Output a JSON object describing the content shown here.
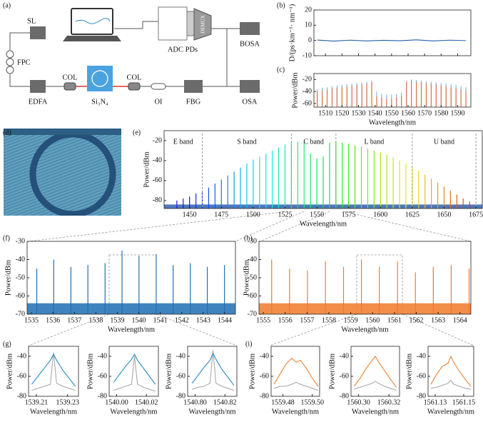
{
  "diagram": {
    "panel": "(a)",
    "sl": "SL",
    "fpc": "FPC",
    "edfa": "EDFA",
    "col_in": "COL",
    "chip": "Si₃N₄",
    "col_out": "COL",
    "oi": "OI",
    "fbg": "FBG",
    "osa": "OSA",
    "bosa": "BOSA",
    "adc": "ADC PDs",
    "demux": "DEMUX"
  },
  "photo": {
    "panel": "(d)"
  },
  "chart_data": [
    {
      "type": "line",
      "panel": "(b)",
      "ylabel": "D/(ps·km⁻¹· nm⁻¹)",
      "xlim": [
        1503,
        1598
      ],
      "ylim": [
        -10,
        20
      ],
      "yticks": [
        -10,
        0,
        10,
        20
      ],
      "xticks": [
        1510,
        1520,
        1530,
        1540,
        1550,
        1560,
        1570,
        1580,
        1590
      ],
      "xtick_labels": false,
      "x": [
        1505,
        1515,
        1525,
        1535,
        1545,
        1555,
        1565,
        1575,
        1585,
        1595
      ],
      "series": [
        {
          "color": "#1f5fa8",
          "values": [
            0.3,
            -0.4,
            0.2,
            -0.3,
            0.1,
            -0.2,
            0.4,
            -0.3,
            0.2,
            -0.1
          ]
        }
      ]
    },
    {
      "type": "stem",
      "panel": "(c)",
      "xlabel": "Wavelength/nm",
      "ylabel": "Power/dBm",
      "xlim": [
        1503,
        1598
      ],
      "ylim": [
        -66,
        -10
      ],
      "yticks": [
        -60,
        -40,
        -20
      ],
      "xticks": [
        1510,
        1520,
        1530,
        1540,
        1550,
        1560,
        1570,
        1580,
        1590
      ],
      "x": [
        1505,
        1508,
        1511,
        1514,
        1517,
        1520,
        1523,
        1526,
        1529,
        1532,
        1535,
        1538,
        1541,
        1544,
        1547,
        1550,
        1553,
        1556,
        1559,
        1562,
        1565,
        1568,
        1571,
        1574,
        1577,
        1580,
        1583,
        1586,
        1589,
        1592,
        1595
      ],
      "series": [
        {
          "color": "#7fb8dc",
          "values": [
            -36,
            -34,
            -33,
            -31,
            -30,
            -29,
            -28,
            -27,
            -26,
            -25,
            -24,
            -22,
            -40,
            -44,
            -45,
            -45,
            -44,
            -42,
            -22,
            -20,
            -21,
            -22,
            -23,
            -24,
            -25,
            -26,
            -27,
            -28,
            -29,
            -31,
            -33
          ]
        },
        {
          "color": "#e0764a",
          "values": [
            -40,
            -38,
            -37,
            -35,
            -34,
            -33,
            -32,
            -31,
            -30,
            -28,
            -27,
            -25,
            -48,
            -50,
            -52,
            -52,
            -50,
            -48,
            -24,
            -22,
            -24,
            -25,
            -26,
            -27,
            -28,
            -30,
            -31,
            -33,
            -35,
            -37,
            -40
          ]
        }
      ]
    },
    {
      "type": "stem",
      "panel": "(e)",
      "xlabel": "Wavelength/nm",
      "ylabel": "Power/dBm",
      "xlim": [
        1430,
        1680
      ],
      "ylim": [
        -88,
        -10
      ],
      "yticks": [
        -80,
        -60,
        -40,
        -20
      ],
      "xticks": [
        1450,
        1475,
        1500,
        1525,
        1550,
        1575,
        1600,
        1625,
        1650,
        1675
      ],
      "noise_floor": -84,
      "x": [
        1440,
        1445,
        1450,
        1455,
        1460,
        1465,
        1470,
        1475,
        1480,
        1485,
        1490,
        1495,
        1500,
        1505,
        1510,
        1515,
        1520,
        1525,
        1530,
        1535,
        1540,
        1545,
        1550,
        1555,
        1560,
        1565,
        1570,
        1575,
        1580,
        1585,
        1590,
        1595,
        1600,
        1605,
        1610,
        1615,
        1620,
        1625,
        1630,
        1635,
        1640,
        1645,
        1650,
        1655,
        1660,
        1665,
        1670
      ],
      "series": [
        {
          "colormap": "rainbow",
          "color": "#3060b0",
          "values": [
            -80,
            -78,
            -76,
            -73,
            -70,
            -67,
            -63,
            -59,
            -55,
            -51,
            -47,
            -43,
            -39,
            -36,
            -33,
            -30,
            -27,
            -24,
            -22,
            -21,
            -21,
            -33,
            -38,
            -36,
            -22,
            -21,
            -22,
            -23,
            -25,
            -26,
            -28,
            -30,
            -32,
            -34,
            -37,
            -40,
            -43,
            -47,
            -50,
            -54,
            -58,
            -62,
            -66,
            -70,
            -74,
            -78,
            -81
          ]
        }
      ],
      "bands": [
        {
          "label": "E band",
          "range": [
            1430,
            1460
          ]
        },
        {
          "label": "S band",
          "range": [
            1460,
            1530
          ]
        },
        {
          "label": "C band",
          "range": [
            1530,
            1565
          ]
        },
        {
          "label": "L band",
          "range": [
            1565,
            1625
          ]
        },
        {
          "label": "U band",
          "range": [
            1625,
            1675
          ]
        }
      ]
    },
    {
      "type": "stem",
      "panel": "(f)",
      "xlabel": "Wavelength/nm",
      "ylabel": "Power/dBm",
      "xlim": [
        1534.8,
        1544.5
      ],
      "ylim": [
        -70,
        -30
      ],
      "yticks": [
        -70,
        -60,
        -50,
        -40,
        -30
      ],
      "xticks": [
        1535,
        1536,
        1537,
        1538,
        1539,
        1540,
        1541,
        1542,
        1543,
        1544
      ],
      "noise_floor": -64,
      "x": [
        1535.25,
        1536.04,
        1536.84,
        1537.63,
        1538.43,
        1539.22,
        1540.01,
        1540.81,
        1541.6,
        1542.4,
        1543.19,
        1543.99
      ],
      "series": [
        {
          "color": "#1f6fb4",
          "values": [
            -45,
            -40,
            -44,
            -43,
            -42,
            -35,
            -38,
            -37,
            -43,
            -42,
            -44,
            -43
          ]
        }
      ]
    },
    {
      "type": "stem",
      "panel": "(h)",
      "xlabel": "Wavelength/nm",
      "ylabel": "Power/dBm",
      "xlim": [
        1554.8,
        1564.5
      ],
      "ylim": [
        -70,
        -30
      ],
      "yticks": [
        -70,
        -60,
        -50,
        -40,
        -30
      ],
      "xticks": [
        1555,
        1556,
        1557,
        1558,
        1559,
        1560,
        1561,
        1562,
        1563,
        1564
      ],
      "noise_floor": -64,
      "x": [
        1555.38,
        1556.2,
        1557.02,
        1557.84,
        1558.67,
        1559.49,
        1560.31,
        1561.14,
        1561.96,
        1562.78,
        1563.6,
        1564.42
      ],
      "series": [
        {
          "color": "#f07a2a",
          "values": [
            -40,
            -45,
            -46,
            -41,
            -44,
            -40,
            -44,
            -41,
            -47,
            -44,
            -43,
            -45
          ]
        }
      ]
    },
    {
      "type": "line",
      "panel": "(g)",
      "xlabel": "Wavelength/nm",
      "ylabel": "Power/dBm",
      "xlim": [
        1539.205,
        1539.237
      ],
      "ylim": [
        -80,
        -30
      ],
      "yticks": [
        -80,
        -60,
        -40
      ],
      "xticks": [
        1539.21,
        1539.23
      ],
      "x": [
        1539.207,
        1539.211,
        1539.215,
        1539.219,
        1539.221,
        1539.223,
        1539.227,
        1539.231,
        1539.235
      ],
      "series": [
        {
          "color": "#aaaaaa",
          "values": [
            -74,
            -72,
            -70,
            -68,
            -36,
            -67,
            -70,
            -72,
            -74
          ]
        },
        {
          "color": "#2a8ac0",
          "values": [
            -68,
            -60,
            -52,
            -44,
            -38,
            -44,
            -54,
            -62,
            -70
          ]
        }
      ]
    },
    {
      "type": "line",
      "xlabel": "Wavelength/nm",
      "ylabel": "Power/dBm",
      "xlim": [
        1539.995,
        1540.028
      ],
      "ylim": [
        -80,
        -30
      ],
      "yticks": [
        -80,
        -60,
        -40
      ],
      "xticks": [
        {
          "value": 1540,
          "label": "1540.00"
        },
        1540.02
      ],
      "x": [
        1539.998,
        1540.002,
        1540.006,
        1540.01,
        1540.012,
        1540.014,
        1540.018,
        1540.022,
        1540.026
      ],
      "series": [
        {
          "color": "#aaaaaa",
          "values": [
            -74,
            -72,
            -70,
            -68,
            -40,
            -68,
            -71,
            -73,
            -75
          ]
        },
        {
          "color": "#2a8ac0",
          "values": [
            -66,
            -58,
            -50,
            -43,
            -38,
            -44,
            -52,
            -60,
            -68
          ]
        }
      ]
    },
    {
      "type": "line",
      "xlabel": "Wavelength/nm",
      "ylabel": "Power/dBm",
      "xlim": [
        1540.795,
        1540.828
      ],
      "ylim": [
        -80,
        -30
      ],
      "yticks": [
        -80,
        -60,
        -40
      ],
      "xticks": [
        {
          "value": 1540.8,
          "label": "1540.80"
        },
        1540.82
      ],
      "x": [
        1540.798,
        1540.802,
        1540.806,
        1540.81,
        1540.812,
        1540.814,
        1540.818,
        1540.822,
        1540.826
      ],
      "series": [
        {
          "color": "#aaaaaa",
          "values": [
            -73,
            -71,
            -70,
            -67,
            -34,
            -67,
            -70,
            -72,
            -74
          ]
        },
        {
          "color": "#2a8ac0",
          "values": [
            -67,
            -59,
            -51,
            -44,
            -37,
            -43,
            -53,
            -61,
            -69
          ]
        }
      ]
    },
    {
      "type": "line",
      "panel": "(i)",
      "xlabel": "Wavelength/nm",
      "ylabel": "Power/dBm",
      "xlim": [
        1559.472,
        1559.505
      ],
      "ylim": [
        -80,
        -30
      ],
      "yticks": [
        -80,
        -60,
        -40
      ],
      "xticks": [
        1559.48,
        {
          "value": 1559.5,
          "label": "1559.50"
        }
      ],
      "x": [
        1559.474,
        1559.478,
        1559.482,
        1559.486,
        1559.489,
        1559.492,
        1559.496,
        1559.5,
        1559.504
      ],
      "series": [
        {
          "color": "#aaaaaa",
          "values": [
            -72,
            -70,
            -70,
            -68,
            -66,
            -68,
            -70,
            -72,
            -74
          ]
        },
        {
          "color": "#e8823a",
          "values": [
            -68,
            -58,
            -48,
            -42,
            -46,
            -44,
            -52,
            -62,
            -70
          ]
        }
      ]
    },
    {
      "type": "line",
      "xlabel": "Wavelength/nm",
      "ylabel": "Power/dBm",
      "xlim": [
        1560.295,
        1560.327
      ],
      "ylim": [
        -80,
        -30
      ],
      "yticks": [
        -80,
        -60,
        -40
      ],
      "xticks": [
        {
          "value": 1560.3,
          "label": "1560.30"
        },
        1560.32
      ],
      "x": [
        1560.297,
        1560.301,
        1560.305,
        1560.309,
        1560.311,
        1560.313,
        1560.317,
        1560.321,
        1560.325
      ],
      "series": [
        {
          "color": "#aaaaaa",
          "values": [
            -73,
            -71,
            -69,
            -67,
            -65,
            -67,
            -70,
            -72,
            -74
          ]
        },
        {
          "color": "#e8823a",
          "values": [
            -70,
            -62,
            -52,
            -44,
            -40,
            -45,
            -54,
            -63,
            -71
          ]
        }
      ]
    },
    {
      "type": "line",
      "xlabel": "Wavelength/nm",
      "ylabel": "Power/dBm",
      "xlim": [
        1561.125,
        1561.157
      ],
      "ylim": [
        -80,
        -30
      ],
      "yticks": [
        -80,
        -60,
        -40
      ],
      "xticks": [
        1561.13,
        1561.15
      ],
      "x": [
        1561.127,
        1561.131,
        1561.135,
        1561.139,
        1561.141,
        1561.143,
        1561.147,
        1561.151,
        1561.155
      ],
      "series": [
        {
          "color": "#aaaaaa",
          "values": [
            -72,
            -71,
            -69,
            -67,
            -64,
            -68,
            -70,
            -72,
            -73
          ]
        },
        {
          "color": "#e8823a",
          "values": [
            -68,
            -58,
            -50,
            -47,
            -40,
            -46,
            -55,
            -63,
            -70
          ]
        }
      ]
    }
  ]
}
